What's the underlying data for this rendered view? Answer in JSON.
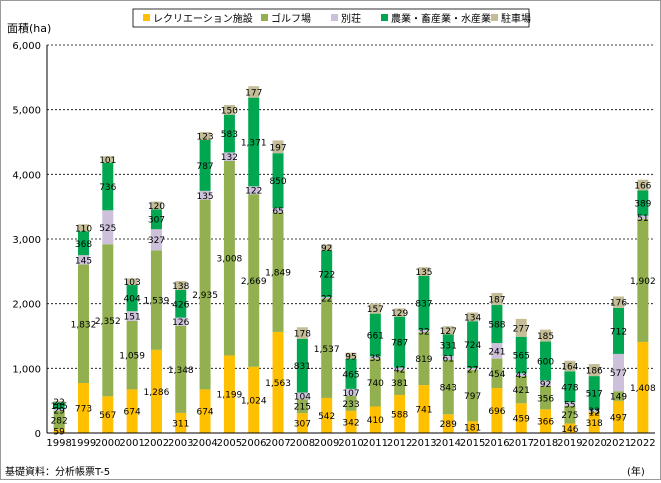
{
  "chart_data": {
    "type": "bar",
    "stacked": true,
    "ylabel": "面積(ha)",
    "xunit": "(年)",
    "source": "基礎資料：分析帳票T-5",
    "ylim": [
      0,
      6000
    ],
    "yticks": [
      0,
      1000,
      2000,
      3000,
      4000,
      5000,
      6000
    ],
    "ytick_labels": [
      "0",
      "1,000",
      "2,000",
      "3,000",
      "4,000",
      "5,000",
      "6,000"
    ],
    "grid": true,
    "legend_position": "top",
    "categories": [
      "1998",
      "1999",
      "2000",
      "2001",
      "2002",
      "2003",
      "2004",
      "2005",
      "2006",
      "2007",
      "2008",
      "2009",
      "2010",
      "2011",
      "2012",
      "2013",
      "2014",
      "2015",
      "2016",
      "2017",
      "2018",
      "2019",
      "2020",
      "2021",
      "2022"
    ],
    "series": [
      {
        "name": "レクリエーション施設",
        "color": "#ffc000",
        "values": [
          59,
          773,
          567,
          674,
          1286,
          311,
          674,
          1199,
          1024,
          1563,
          307,
          542,
          342,
          410,
          588,
          741,
          289,
          181,
          696,
          459,
          366,
          146,
          318,
          497,
          1408
        ],
        "labels": [
          "59",
          "773",
          "567",
          "674",
          "1,286",
          "311",
          "674",
          "1,199",
          "1,024",
          "1,563",
          "307",
          "542",
          "342",
          "410",
          "588",
          "741",
          "289",
          "181",
          "696",
          "459",
          "366",
          "146",
          "318",
          "497",
          "1,408"
        ]
      },
      {
        "name": "ゴルフ場",
        "color": "#92b050",
        "values": [
          282,
          1832,
          2352,
          1059,
          1539,
          1348,
          2935,
          3008,
          2669,
          1849,
          215,
          1537,
          233,
          740,
          381,
          819,
          843,
          797,
          454,
          421,
          356,
          275,
          12,
          149,
          1902
        ],
        "labels": [
          "282",
          "1,832",
          "2,352",
          "1,059",
          "1,539",
          "1,348",
          "2,935",
          "3,008",
          "2,669",
          "1,849",
          "215",
          "1,537",
          "233",
          "740",
          "381",
          "819",
          "843",
          "797",
          "454",
          "421",
          "356",
          "275",
          "12",
          "149",
          "1,902"
        ]
      },
      {
        "name": "別荘",
        "color": "#ccc0da",
        "values": [
          29,
          145,
          525,
          151,
          327,
          126,
          135,
          132,
          122,
          65,
          104,
          22,
          107,
          35,
          42,
          32,
          61,
          27,
          241,
          43,
          92,
          55,
          33,
          577,
          51
        ],
        "labels": [
          "29",
          "145",
          "525",
          "151",
          "327",
          "126",
          "135",
          "132",
          "122",
          "65",
          "104",
          "22",
          "107",
          "35",
          "42",
          "32",
          "61",
          "27",
          "241",
          "43",
          "92",
          "55",
          "33",
          "577",
          "51"
        ]
      },
      {
        "name": "農業・畜産業・水産業",
        "color": "#00a650",
        "values": [
          105,
          368,
          736,
          404,
          307,
          426,
          787,
          583,
          1371,
          850,
          831,
          722,
          465,
          661,
          787,
          837,
          331,
          724,
          588,
          565,
          600,
          478,
          517,
          712,
          389
        ],
        "labels": [
          "105",
          "368",
          "736",
          "404",
          "307",
          "426",
          "787",
          "583",
          "1,371",
          "850",
          "831",
          "722",
          "465",
          "661",
          "787",
          "837",
          "331",
          "724",
          "588",
          "565",
          "600",
          "478",
          "517",
          "712",
          "389"
        ]
      },
      {
        "name": "駐車場",
        "color": "#c4bd97",
        "values": [
          22,
          110,
          101,
          103,
          120,
          138,
          123,
          150,
          177,
          197,
          178,
          92,
          95,
          157,
          129,
          135,
          127,
          134,
          187,
          277,
          185,
          164,
          186,
          176,
          166
        ],
        "labels": [
          "22",
          "110",
          "101",
          "103",
          "120",
          "138",
          "123",
          "150",
          "177",
          "197",
          "178",
          "92",
          "95",
          "157",
          "129",
          "135",
          "127",
          "134",
          "187",
          "277",
          "185",
          "164",
          "186",
          "176",
          "166"
        ]
      }
    ]
  }
}
